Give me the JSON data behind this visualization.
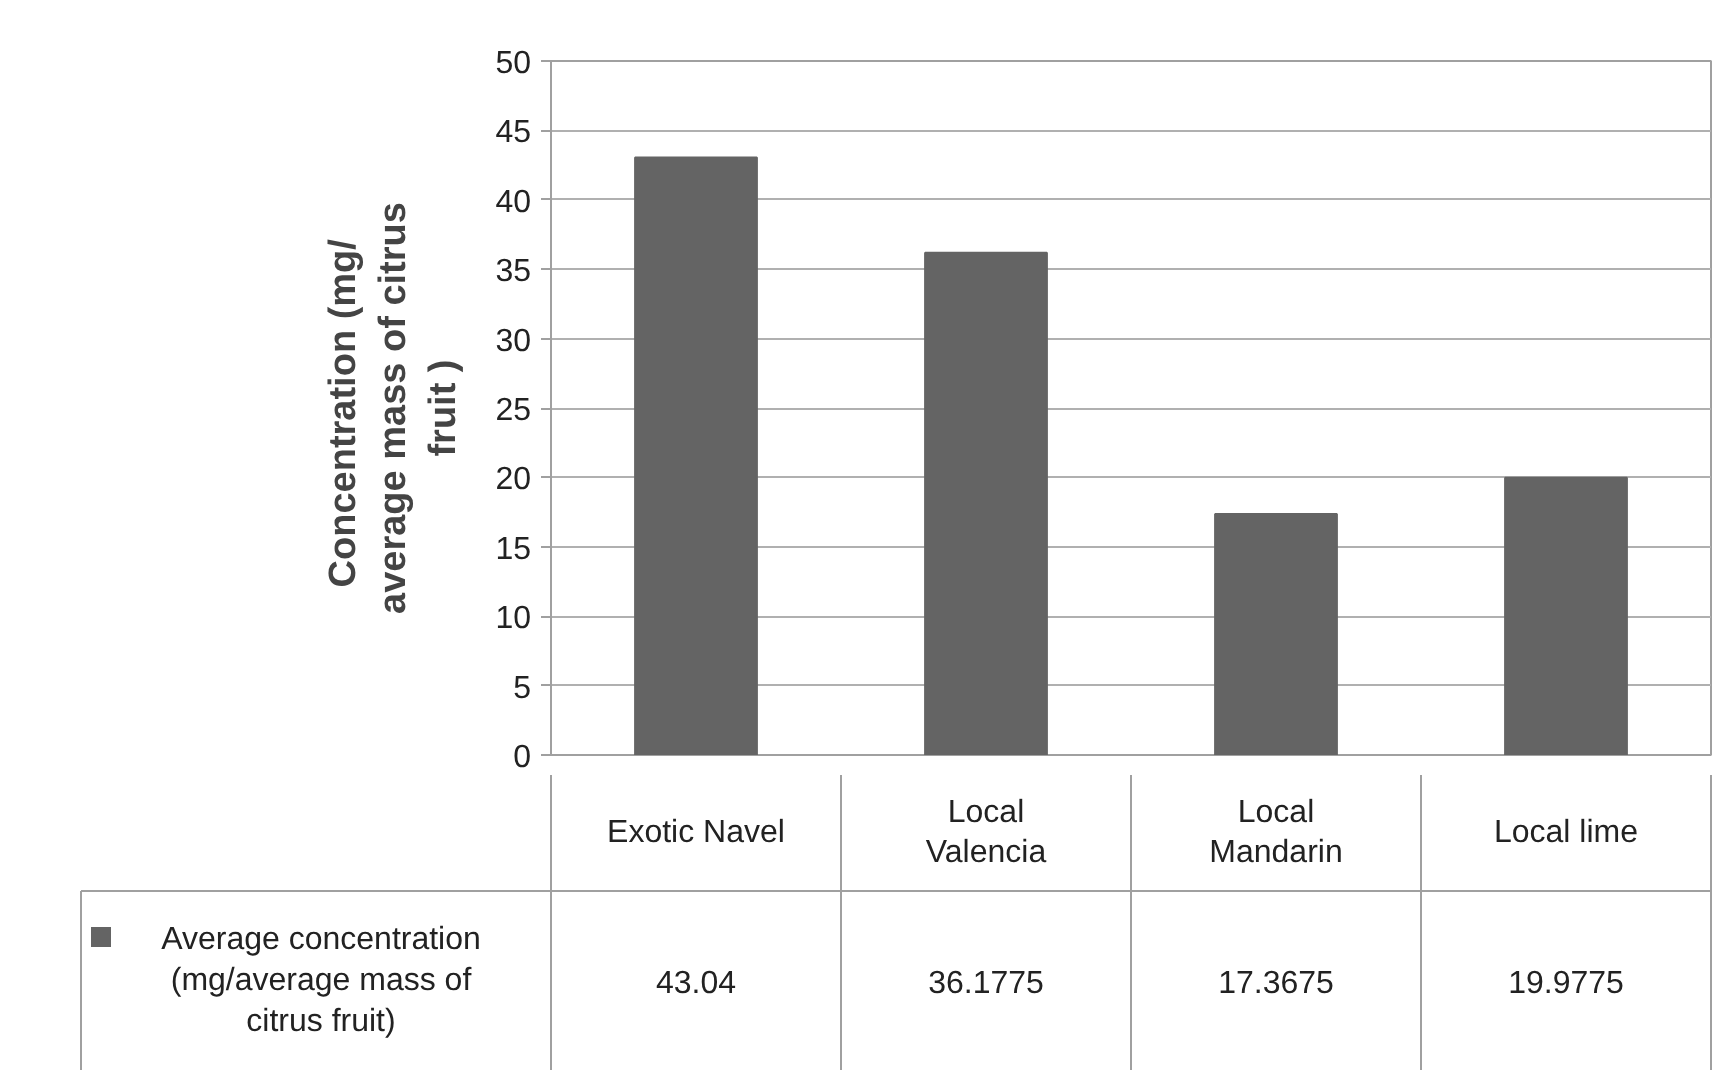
{
  "chart_data": {
    "type": "bar",
    "ylabel": "Concentration  (mg/ average mass of citrus fruit )",
    "categories": [
      "Exotic Navel",
      "Local Valencia",
      "Local Mandarin",
      "Local lime"
    ],
    "series": [
      {
        "name": "Average concentration (mg/average mass of citrus fruit)",
        "color": "#646464",
        "values": [
          43.04,
          36.1775,
          17.3675,
          19.9775
        ]
      }
    ],
    "ylim": [
      0,
      50
    ],
    "yticks": [
      0,
      5,
      10,
      15,
      20,
      25,
      30,
      35,
      40,
      45,
      50
    ],
    "grid": "y",
    "data_labels": true
  }
}
